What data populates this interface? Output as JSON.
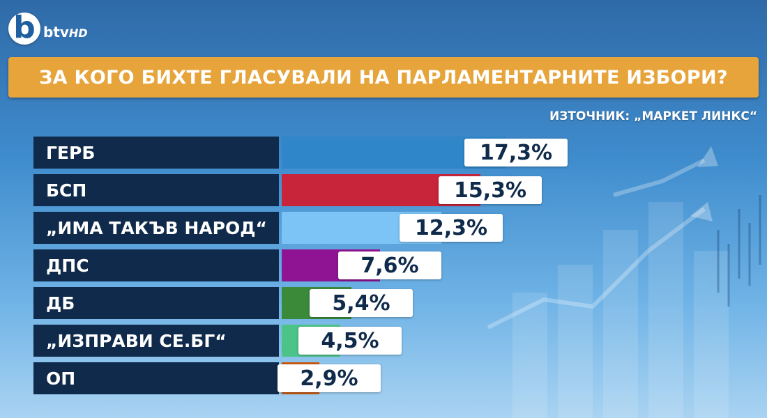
{
  "channel": {
    "logo_text": "btv",
    "logo_suffix": "HD"
  },
  "header": {
    "question": "ЗА КОГО БИХТЕ ГЛАСУВАЛИ НА ПАРЛАМЕНТАРНИТЕ ИЗБОРИ?",
    "source": "ИЗТОЧНИК: „МАРКЕТ ЛИНКС“"
  },
  "chart_data": {
    "type": "bar",
    "orientation": "horizontal",
    "title": "ЗА КОГО БИХТЕ ГЛАСУВАЛИ НА ПАРЛАМЕНТАРНИТЕ ИЗБОРИ?",
    "categories": [
      "ГЕРБ",
      "БСП",
      "„ИМА ТАКЪВ НАРОД“",
      "ДПС",
      "ДБ",
      "„ИЗПРАВИ СЕ.БГ“",
      "ОП"
    ],
    "values": [
      17.3,
      15.3,
      12.3,
      7.6,
      5.4,
      4.5,
      2.9
    ],
    "value_labels": [
      "17,3%",
      "15,3%",
      "12,3%",
      "7,6%",
      "5,4%",
      "4,5%",
      "2,9%"
    ],
    "colors": [
      "#2f86c8",
      "#c8243a",
      "#7cc4f5",
      "#8f1493",
      "#3a8a3a",
      "#4cc389",
      "#c85a12"
    ],
    "unit": "%",
    "grid": false
  }
}
